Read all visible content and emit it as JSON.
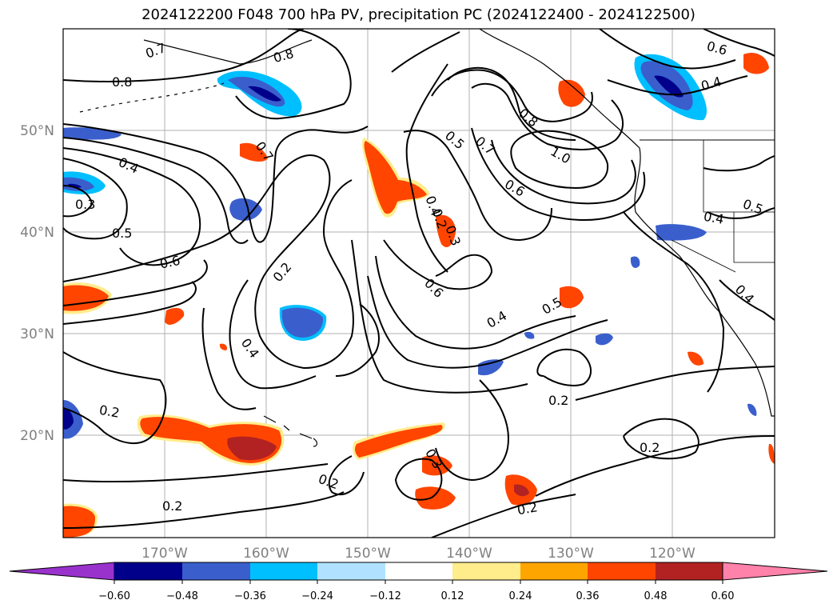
{
  "title": "2024122200 F048 700 hPa PV, precipitation PC (2024122400 - 2024122500)",
  "map": {
    "lat_labels": [
      "50°N",
      "40°N",
      "30°N",
      "20°N"
    ],
    "lon_labels": [
      "170°W",
      "160°W",
      "150°W",
      "140°W",
      "130°W",
      "120°W"
    ],
    "contour_labels": [
      "0.7",
      "0.8",
      "0.8",
      "0.6",
      "0.6",
      "0.4",
      "0.4",
      "0.3",
      "0.5",
      "0.7",
      "0.5",
      "0.7",
      "0.8",
      "1.0",
      "0.6",
      "0.2",
      "0.2",
      "0.6",
      "0.4",
      "0.4",
      "0.5",
      "0.3",
      "0.4",
      "0.2",
      "0.2",
      "0.2",
      "0.2",
      "0.3",
      "0.2",
      "0.2",
      "0.4",
      "0.5",
      "0.4"
    ]
  },
  "colorbar": {
    "ticks": [
      "−0.60",
      "−0.48",
      "−0.36",
      "−0.24",
      "−0.12",
      "0.12",
      "0.24",
      "0.36",
      "0.48",
      "0.60"
    ],
    "colors": {
      "under": "#9932cc",
      "c1": "#00008b",
      "c2": "#3a5fcd",
      "c3": "#00bfff",
      "c4": "#b0e2ff",
      "c5": "#ffffff",
      "c6": "#ffec8b",
      "c7": "#ffa500",
      "c8": "#ff4500",
      "c9": "#b22222",
      "over": "#ff82ab"
    }
  }
}
